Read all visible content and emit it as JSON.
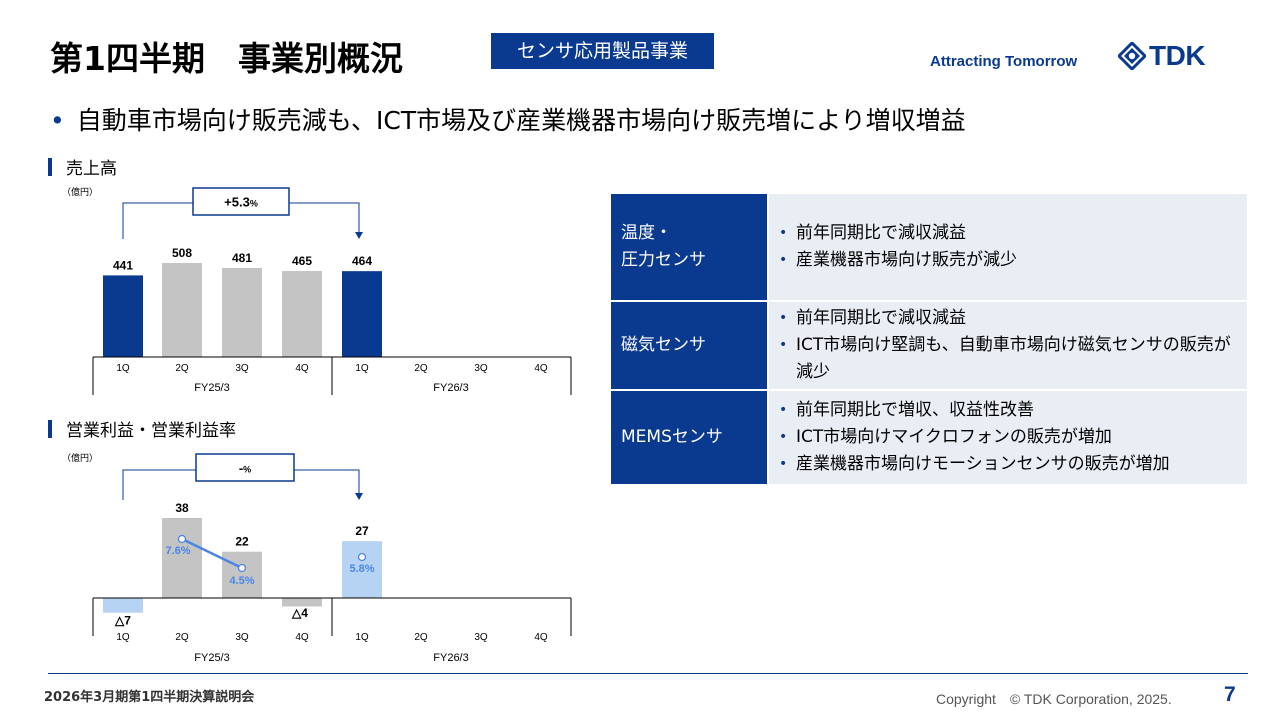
{
  "header": {
    "title": "第1四半期　事業別概況",
    "badge": "センサ応用製品事業",
    "slogan": "Attracting Tomorrow",
    "logo_text": "TDK"
  },
  "bullet": "自動車市場向け販売減も、ICT市場及び産業機器市場向け販売増により増収増益",
  "sales_section": {
    "label": "売上高",
    "unit": "（億円）",
    "change": "+5.3",
    "change_unit": "%"
  },
  "profit_section": {
    "label": "営業利益・営業利益率",
    "unit": "（億円）",
    "change": "-",
    "change_unit": "%"
  },
  "colors": {
    "accent": "#0a3a8f",
    "gray": "#c4c4c4",
    "light_blue": "#b7d3f4",
    "line": "#4a86e8",
    "table_bg": "#e9eef5"
  },
  "chart_data": [
    {
      "type": "bar",
      "title": "売上高",
      "quarters": [
        "1Q",
        "2Q",
        "3Q",
        "4Q",
        "1Q",
        "2Q",
        "3Q",
        "4Q"
      ],
      "fiscal_years": [
        "FY25/3",
        "FY26/3"
      ],
      "values": [
        441,
        508,
        481,
        465,
        464,
        null,
        null,
        null
      ],
      "value_labels": [
        "441",
        "508",
        "481",
        "465",
        "464",
        "",
        "",
        ""
      ],
      "highlight": [
        true,
        false,
        false,
        false,
        true,
        false,
        false,
        false
      ]
    },
    {
      "type": "bar",
      "title": "営業利益・営業利益率",
      "quarters": [
        "1Q",
        "2Q",
        "3Q",
        "4Q",
        "1Q",
        "2Q",
        "3Q",
        "4Q"
      ],
      "fiscal_years": [
        "FY25/3",
        "FY26/3"
      ],
      "values": [
        -7,
        38,
        22,
        -4,
        27,
        null,
        null,
        null
      ],
      "value_labels": [
        "△7",
        "38",
        "22",
        "△4",
        "27",
        "",
        "",
        ""
      ],
      "margin_rate": [
        null,
        7.6,
        4.5,
        null,
        5.8,
        null,
        null,
        null
      ],
      "margin_labels": [
        "",
        "7.6%",
        "4.5%",
        "",
        "5.8%",
        "",
        "",
        ""
      ]
    }
  ],
  "table": [
    {
      "header": [
        "温度・",
        "圧力センサ"
      ],
      "items": [
        "前年同期比で減収減益",
        "産業機器市場向け販売が減少"
      ]
    },
    {
      "header": [
        "磁気センサ"
      ],
      "items": [
        "前年同期比で減収減益",
        "ICT市場向け堅調も、自動車市場向け磁気センサの販売が減少"
      ]
    },
    {
      "header": [
        "MEMSセンサ"
      ],
      "items": [
        "前年同期比で増収、収益性改善",
        "ICT市場向けマイクロフォンの販売が増加",
        "産業機器市場向けモーションセンサの販売が増加"
      ]
    }
  ],
  "footer": {
    "left": "2026年3月期第1四半期決算説明会",
    "copyright": "Copyright　© TDK Corporation, 2025.",
    "page": "7"
  }
}
